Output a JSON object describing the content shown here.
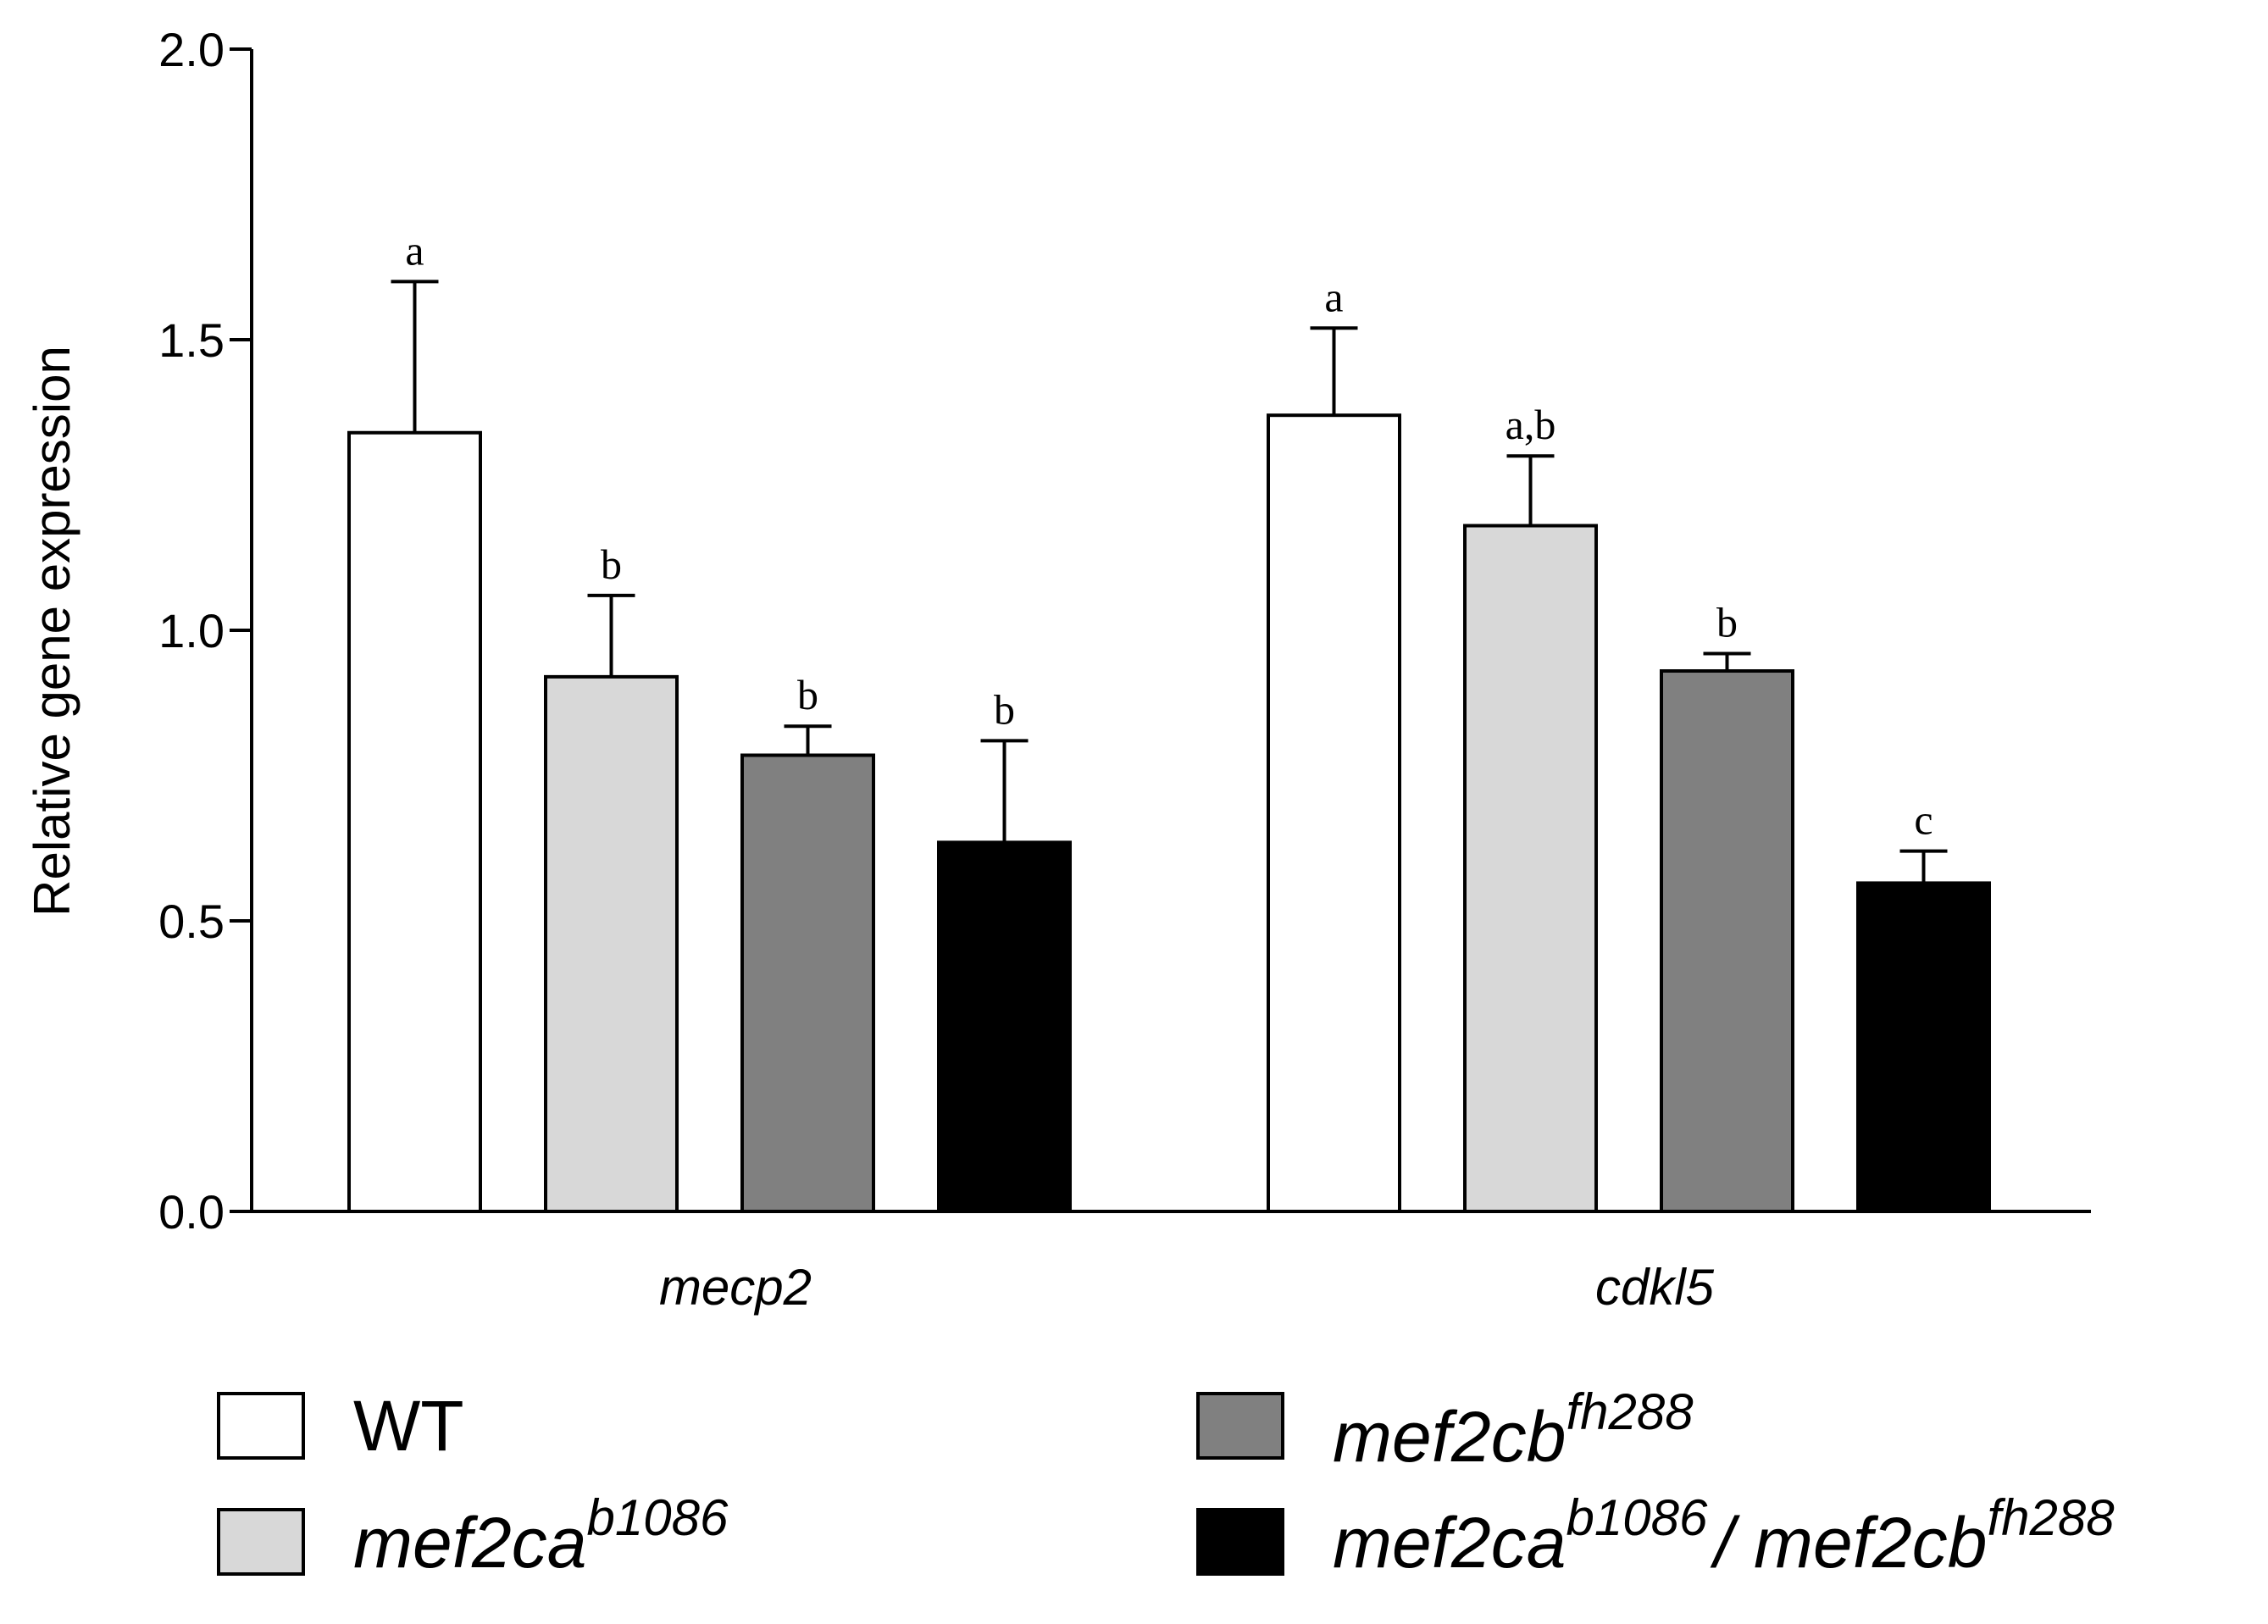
{
  "chart_data": {
    "type": "bar",
    "title": "",
    "xlabel": "",
    "ylabel": "Relative gene expression",
    "ylim": [
      0,
      2.0
    ],
    "yticks": [
      "0.0",
      "0.5",
      "1.0",
      "1.5",
      "2.0"
    ],
    "categories": [
      "mecp2",
      "cdkl5"
    ],
    "series": [
      {
        "name": "WT",
        "name_sup": "",
        "color": "#ffffff",
        "values": [
          1.34,
          1.37
        ],
        "errors": [
          0.26,
          0.15
        ],
        "sig": [
          "a",
          "a"
        ]
      },
      {
        "name": "mef2ca",
        "name_sup": "b1086",
        "color": "#d8d8d8",
        "values": [
          0.92,
          1.18
        ],
        "errors": [
          0.14,
          0.12
        ],
        "sig": [
          "b",
          "a,b"
        ]
      },
      {
        "name": "mef2cb",
        "name_sup": "fh288",
        "color": "#808080",
        "values": [
          0.785,
          0.93
        ],
        "errors": [
          0.05,
          0.03
        ],
        "sig": [
          "b",
          "b"
        ]
      },
      {
        "name": "mef2ca",
        "name_sup": "b1086",
        "name2": "/ mef2cb",
        "name2_sup": "fh288",
        "color": "#000000",
        "values": [
          0.635,
          0.565
        ],
        "errors": [
          0.175,
          0.055
        ],
        "sig": [
          "b",
          "c"
        ]
      }
    ],
    "legend": "bottom"
  }
}
